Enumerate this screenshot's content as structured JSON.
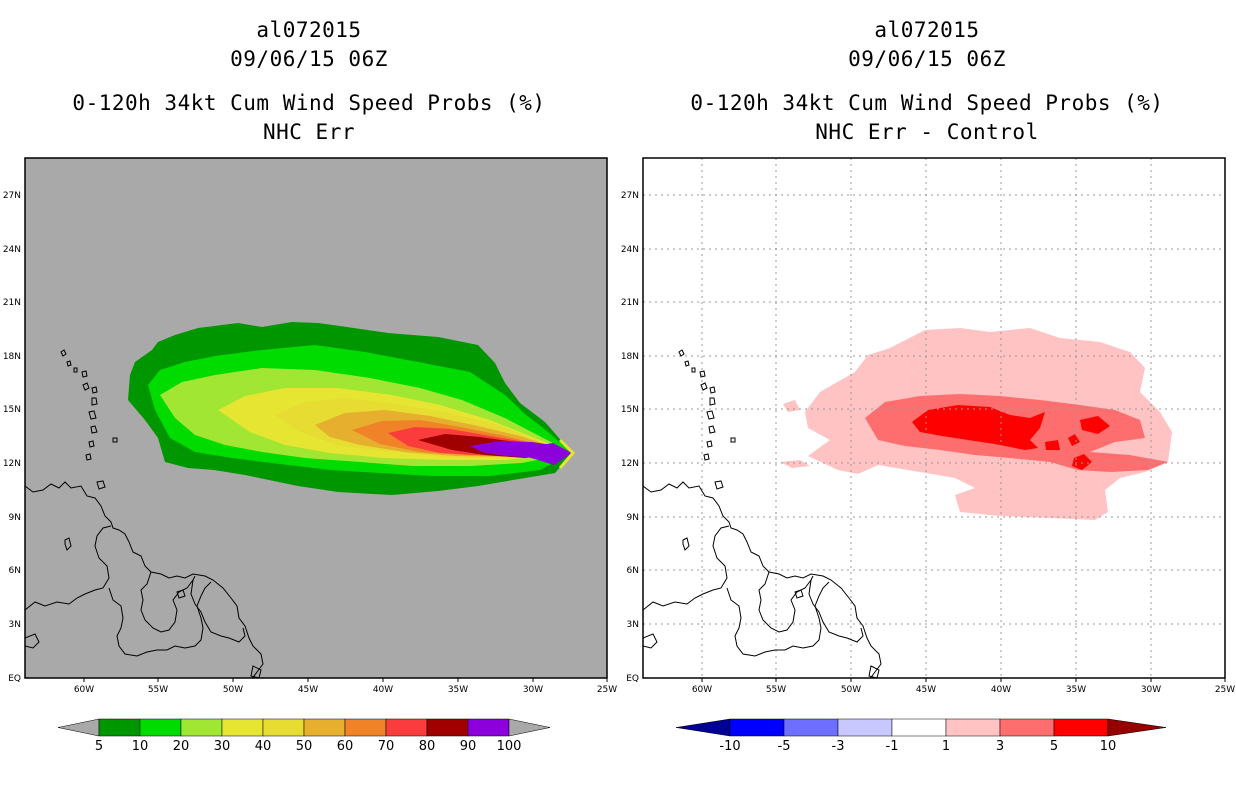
{
  "left": {
    "storm": "al072015",
    "datetime": "09/06/15 06Z",
    "product": "0-120h 34kt Cum Wind Speed Probs (%)",
    "subtitle": "NHC Err"
  },
  "right": {
    "storm": "al072015",
    "datetime": "09/06/15 06Z",
    "product": "0-120h 34kt Cum Wind Speed Probs (%)",
    "subtitle": "NHC Err - Control"
  },
  "axes": {
    "lon_ticks": [
      "60W",
      "55W",
      "50W",
      "45W",
      "40W",
      "35W",
      "30W",
      "25W"
    ],
    "lat_ticks": [
      "EQ",
      "3N",
      "6N",
      "9N",
      "12N",
      "15N",
      "18N",
      "21N",
      "24N",
      "27N"
    ]
  },
  "left_legend": {
    "labels": [
      "5",
      "10",
      "20",
      "30",
      "40",
      "50",
      "60",
      "70",
      "80",
      "90",
      "100"
    ],
    "colors": [
      "#009600",
      "#00dc00",
      "#a0e632",
      "#e6e632",
      "#e6dc32",
      "#e6af2d",
      "#f08228",
      "#fa3c3c",
      "#a00000",
      "#8c00dc"
    ],
    "end_color": "#a9a9a9"
  },
  "right_legend": {
    "labels": [
      "-10",
      "-5",
      "-3",
      "-1",
      "1",
      "3",
      "5",
      "10"
    ],
    "colors": [
      "#0000ff",
      "#6e6eff",
      "#c8c8ff",
      "#ffffff",
      "#ffc3c3",
      "#ff6e6e",
      "#ff0000"
    ],
    "low_end_color": "#000096",
    "high_end_color": "#960000"
  },
  "colors": {
    "ocean_left": "#a9a9a9",
    "ocean_right": "#ffffff",
    "coast": "#000000"
  }
}
